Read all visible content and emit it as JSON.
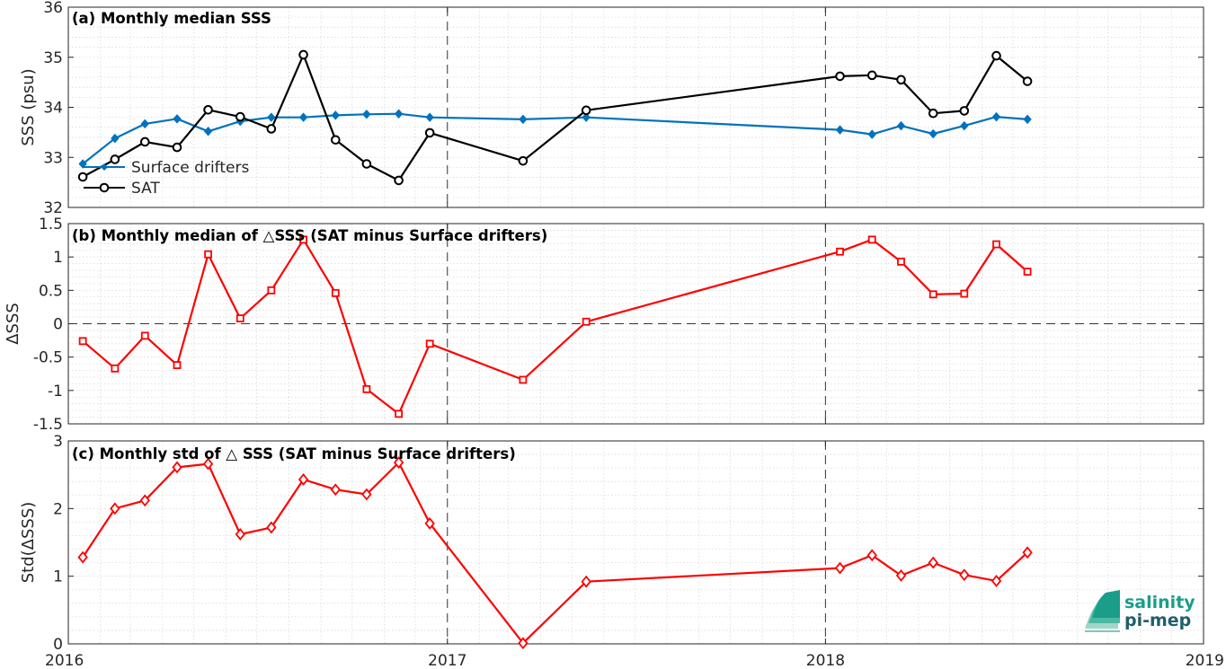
{
  "chart_data": [
    {
      "type": "line",
      "title": "(a) Monthly median SSS",
      "ylabel": "SSS (psu)",
      "ylim": [
        32,
        36
      ],
      "yticks": [
        "32",
        "33",
        "34",
        "35",
        "36"
      ],
      "legend_position": "bottom-left",
      "series": [
        {
          "name": "Surface drifters",
          "color": "#0072BD",
          "marker": "diamond",
          "x": [
            "2016-01-15",
            "2016-02-15",
            "2016-03-15",
            "2016-04-15",
            "2016-05-15",
            "2016-06-15",
            "2016-07-15",
            "2016-08-15",
            "2016-09-15",
            "2016-10-15",
            "2016-11-15",
            "2016-12-15",
            "2017-03-15",
            "2017-05-15",
            "2018-01-15",
            "2018-02-15",
            "2018-03-15",
            "2018-04-15",
            "2018-05-15",
            "2018-06-15",
            "2018-07-15"
          ],
          "values": [
            32.87,
            33.38,
            33.67,
            33.77,
            33.52,
            33.72,
            33.8,
            33.8,
            33.84,
            33.86,
            33.87,
            33.8,
            33.76,
            33.8,
            33.55,
            33.46,
            33.63,
            33.47,
            33.63,
            33.81,
            33.76
          ]
        },
        {
          "name": "SAT",
          "color": "#000000",
          "marker": "circle",
          "x": [
            "2016-01-15",
            "2016-02-15",
            "2016-03-15",
            "2016-04-15",
            "2016-05-15",
            "2016-06-15",
            "2016-07-15",
            "2016-08-15",
            "2016-09-15",
            "2016-10-15",
            "2016-11-15",
            "2016-12-15",
            "2017-03-15",
            "2017-05-15",
            "2018-01-15",
            "2018-02-15",
            "2018-03-15",
            "2018-04-15",
            "2018-05-15",
            "2018-06-15",
            "2018-07-15"
          ],
          "values": [
            32.61,
            32.96,
            33.31,
            33.2,
            33.95,
            33.81,
            33.57,
            35.05,
            33.35,
            32.87,
            32.54,
            33.49,
            32.93,
            33.94,
            34.62,
            34.64,
            34.55,
            33.88,
            33.93,
            35.03,
            34.52
          ]
        }
      ]
    },
    {
      "type": "line",
      "title": "(b) Monthly median of △SSS (SAT minus Surface drifters)",
      "ylabel": "ΔSSS",
      "ylim": [
        -1.5,
        1.5
      ],
      "yticks": [
        "-1.5",
        "-1",
        "-0.5",
        "0",
        "0.5",
        "1",
        "1.5"
      ],
      "zero_line": true,
      "series": [
        {
          "color": "#FF0000",
          "marker": "square",
          "x": [
            "2016-01-15",
            "2016-02-15",
            "2016-03-15",
            "2016-04-15",
            "2016-05-15",
            "2016-06-15",
            "2016-07-15",
            "2016-08-15",
            "2016-09-15",
            "2016-10-15",
            "2016-11-15",
            "2016-12-15",
            "2017-03-15",
            "2017-05-15",
            "2018-01-15",
            "2018-02-15",
            "2018-03-15",
            "2018-04-15",
            "2018-05-15",
            "2018-06-15",
            "2018-07-15"
          ],
          "values": [
            -0.26,
            -0.67,
            -0.18,
            -0.62,
            1.04,
            0.08,
            0.5,
            1.26,
            0.46,
            -0.98,
            -1.35,
            -0.3,
            -0.84,
            0.03,
            1.08,
            1.26,
            0.93,
            0.44,
            0.45,
            1.19,
            0.78
          ]
        }
      ]
    },
    {
      "type": "line",
      "title": "(c) Monthly std of △ SSS (SAT minus Surface drifters)",
      "ylabel": "Std(ΔSSS)",
      "ylim": [
        0,
        3
      ],
      "yticks": [
        "0",
        "1",
        "2",
        "3"
      ],
      "xlabels": [
        "2016",
        "2017",
        "2018",
        "2019"
      ],
      "series": [
        {
          "color": "#FF0000",
          "marker": "diamond",
          "x": [
            "2016-01-15",
            "2016-02-15",
            "2016-03-15",
            "2016-04-15",
            "2016-05-15",
            "2016-06-15",
            "2016-07-15",
            "2016-08-15",
            "2016-09-15",
            "2016-10-15",
            "2016-11-15",
            "2016-12-15",
            "2017-03-15",
            "2017-05-15",
            "2018-01-15",
            "2018-02-15",
            "2018-03-15",
            "2018-04-15",
            "2018-05-15",
            "2018-06-15",
            "2018-07-15"
          ],
          "values": [
            1.28,
            2.0,
            2.12,
            2.61,
            2.66,
            1.62,
            1.72,
            2.43,
            2.28,
            2.21,
            2.68,
            1.78,
            0.01,
            0.92,
            1.12,
            1.31,
            1.01,
            1.2,
            1.02,
            0.93,
            1.35
          ]
        }
      ]
    }
  ],
  "logo": {
    "line1": "salinity",
    "line2": "pi-mep",
    "color": "#1a9e8a"
  }
}
